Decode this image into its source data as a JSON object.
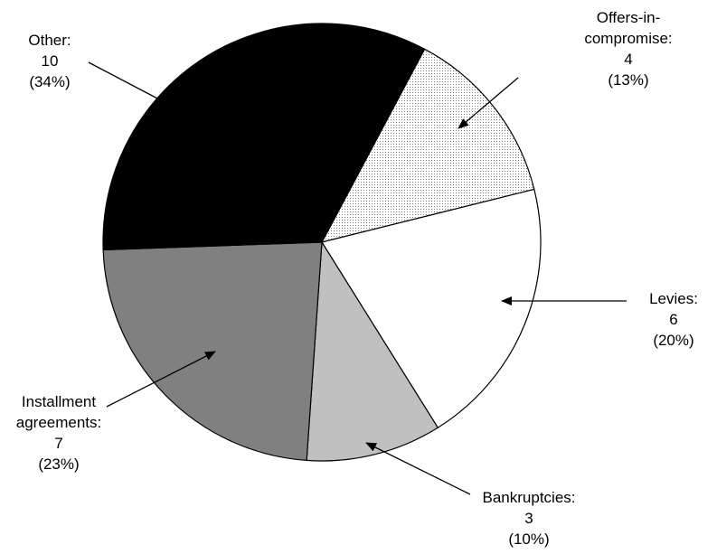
{
  "chart_data": {
    "type": "pie",
    "title": "",
    "start_angle_deg": 62,
    "direction": "clockwise",
    "slices": [
      {
        "label": "Offers-in-compromise",
        "value": 4,
        "percent": "13%",
        "fill": "dots"
      },
      {
        "label": "Levies",
        "value": 6,
        "percent": "20%",
        "fill": "#ffffff"
      },
      {
        "label": "Bankruptcies",
        "value": 3,
        "percent": "10%",
        "fill": "#c0c0c0"
      },
      {
        "label": "Installment agreements",
        "value": 7,
        "percent": "23%",
        "fill": "#808080"
      },
      {
        "label": "Other",
        "value": 10,
        "percent": "34%",
        "fill": "#000000"
      }
    ]
  },
  "labels": {
    "offers": {
      "line1": "Offers-in-",
      "line2": "compromise:",
      "value": "4",
      "percent": "(13%)"
    },
    "levies": {
      "line1": "Levies:",
      "value": "6",
      "percent": "(20%)"
    },
    "bankruptcies": {
      "line1": "Bankruptcies:",
      "value": "3",
      "percent": "(10%)"
    },
    "installment": {
      "line1": "Installment",
      "line2": "agreements:",
      "value": "7",
      "percent": "(23%)"
    },
    "other": {
      "line1": "Other:",
      "value": "10",
      "percent": "(34%)"
    }
  }
}
